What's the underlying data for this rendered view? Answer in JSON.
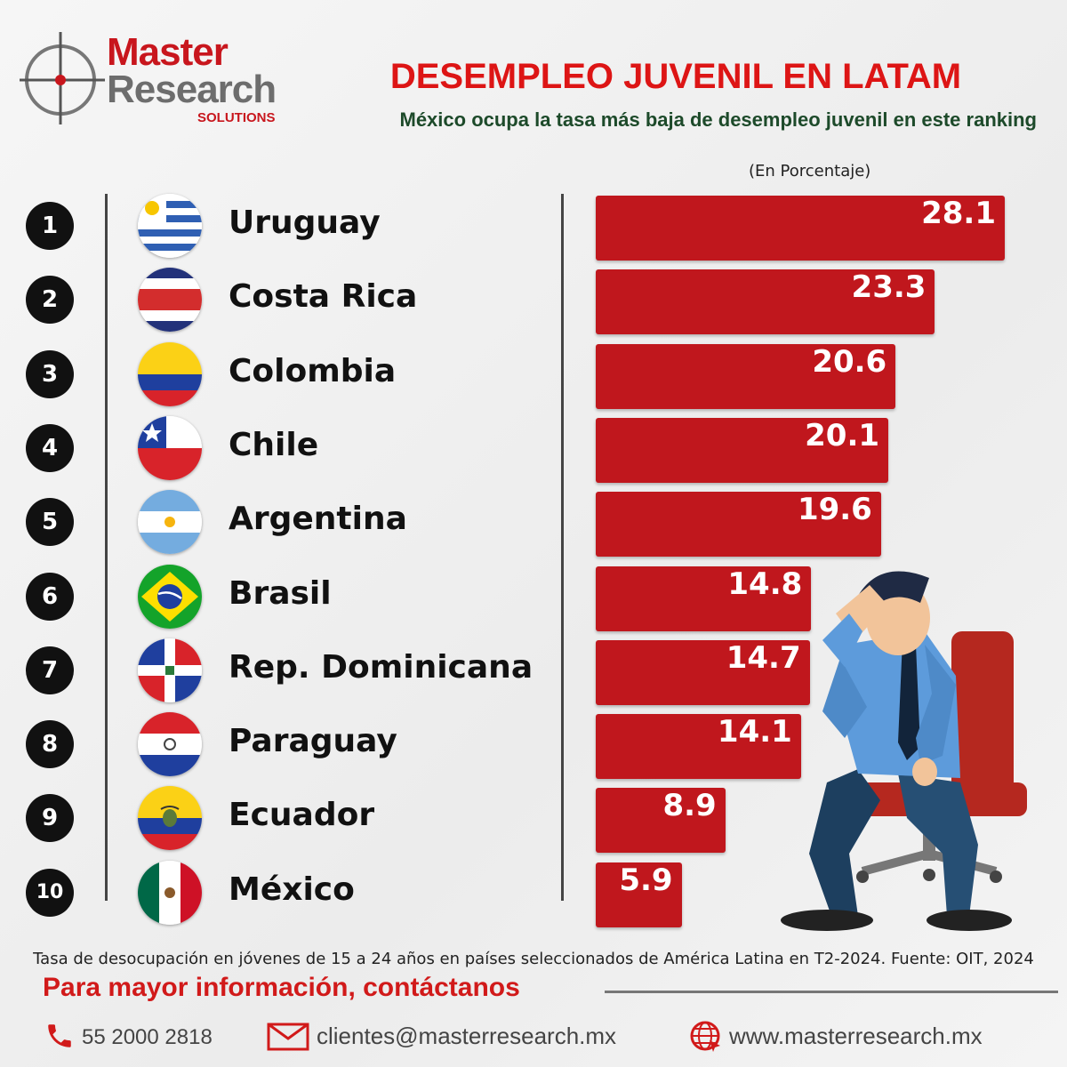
{
  "logo": {
    "line1": "Master",
    "line2": "Research",
    "line3": "SOLUTIONS"
  },
  "header": {
    "title": "DESEMPLEO JUVENIL EN LATAM",
    "subtitle": "México ocupa la tasa más baja de desempleo juvenil en este ranking",
    "unit": "(En Porcentaje)"
  },
  "chart_data": {
    "type": "bar",
    "orientation": "horizontal",
    "title": "DESEMPLEO JUVENIL EN LATAM",
    "subtitle": "México ocupa la tasa más baja de desempleo juvenil en este ranking",
    "unit": "(En Porcentaje)",
    "categories": [
      "Uruguay",
      "Costa Rica",
      "Colombia",
      "Chile",
      "Argentina",
      "Brasil",
      "Rep. Dominicana",
      "Paraguay",
      "Ecuador",
      "México"
    ],
    "ranks": [
      "1",
      "2",
      "3",
      "4",
      "5",
      "6",
      "7",
      "8",
      "9",
      "10"
    ],
    "values": [
      28.1,
      23.3,
      20.6,
      20.1,
      19.6,
      14.8,
      14.7,
      14.1,
      8.9,
      5.9
    ],
    "value_labels": [
      "28.1",
      "23.3",
      "20.6",
      "20.1",
      "19.6",
      "14.8",
      "14.7",
      "14.1",
      "8.9",
      "5.9"
    ],
    "bar_color": "#c0171d",
    "grid": false,
    "legend": "none"
  },
  "flags": [
    "uruguay-flag-icon",
    "costa-rica-flag-icon",
    "colombia-flag-icon",
    "chile-flag-icon",
    "argentina-flag-icon",
    "brazil-flag-icon",
    "dominican-republic-flag-icon",
    "paraguay-flag-icon",
    "ecuador-flag-icon",
    "mexico-flag-icon"
  ],
  "footer": {
    "source": "Tasa de desocupación en jóvenes de 15 a 24 años en países seleccionados de América Latina en T2-2024. Fuente: OIT, 2024",
    "contact_title": "Para mayor información, contáctanos",
    "phone": "55 2000 2818",
    "email": "clientes@masterresearch.mx",
    "website": "www.masterresearch.mx"
  },
  "colors": {
    "brand_red": "#c8161d",
    "title_red": "#dd1515",
    "subtitle_green": "#1d4a2a",
    "logo_gray": "#6d6d6d"
  }
}
